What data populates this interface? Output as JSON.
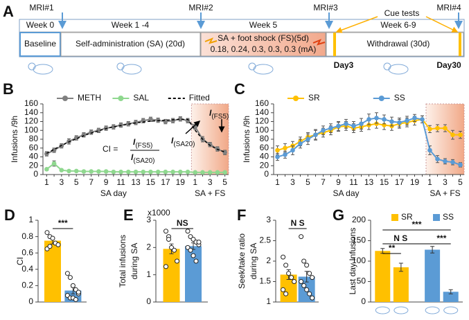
{
  "panel_a": {
    "label": "A",
    "mri": [
      "MRI#1",
      "MRI#2",
      "MRI#3",
      "MRI#4"
    ],
    "weeks": [
      "Week 0",
      "Week 1 -4",
      "Week 5",
      "Week 6-9"
    ],
    "cue_tests": "Cue tests",
    "phases": [
      "Baseline",
      "Self-administration (SA) (20d)",
      "SA + foot shock (FS)(5d)",
      "Withdrawal (30d)"
    ],
    "shock_levels": "0.18, 0.24, 0.3, 0.3, 0.3 (mA)",
    "days": [
      "Day3",
      "Day30"
    ]
  },
  "chart_data": [
    {
      "type": "line",
      "panel": "B",
      "ylabel": "Infusions /9h",
      "xlabels": [
        "SA day",
        "SA + FS"
      ],
      "categories": [
        "1",
        null,
        "3",
        null,
        "5",
        null,
        "7",
        null,
        "9",
        null,
        "11",
        null,
        "13",
        null,
        "15",
        null,
        "17",
        null,
        "19",
        null,
        "1",
        null,
        "3",
        null,
        "5"
      ],
      "ylim": [
        0,
        160
      ],
      "yticks": [
        0,
        20,
        40,
        60,
        80,
        100,
        120,
        140,
        160
      ],
      "series": [
        {
          "name": "METH",
          "color": "#808080",
          "values": [
            47,
            55,
            65,
            75,
            83,
            90,
            96,
            100,
            105,
            108,
            112,
            115,
            118,
            122,
            125,
            123,
            120,
            122,
            126,
            122,
            108,
            80,
            68,
            58,
            50
          ],
          "errors": [
            5,
            5,
            5,
            6,
            5,
            5,
            5,
            5,
            5,
            5,
            5,
            5,
            5,
            5,
            5,
            5,
            5,
            5,
            5,
            5,
            6,
            6,
            5,
            5,
            5
          ]
        },
        {
          "name": "SAL",
          "color": "#8fd88f",
          "values": [
            12,
            25,
            10,
            8,
            8,
            7,
            7,
            7,
            7,
            6,
            6,
            6,
            6,
            6,
            6,
            6,
            6,
            6,
            6,
            6,
            5,
            5,
            5,
            5,
            5
          ],
          "errors": [
            3,
            6,
            2,
            2,
            2,
            2,
            2,
            2,
            2,
            2,
            2,
            2,
            2,
            2,
            2,
            2,
            2,
            2,
            2,
            2,
            2,
            2,
            2,
            2,
            2
          ]
        },
        {
          "name": "Fitted",
          "color": "#000000",
          "dashed": true,
          "values": [
            48,
            57,
            66,
            74,
            81,
            88,
            94,
            99,
            104,
            108,
            111,
            114,
            117,
            119,
            121,
            122,
            123,
            124,
            125,
            125,
            100,
            80,
            66,
            57,
            51
          ]
        }
      ],
      "annotations": {
        "ci": "CI =",
        "terms": [
          {
            "text": "I",
            "sub": "(FS5)"
          },
          {
            "text": "I",
            "sub": "(SA20)"
          },
          {
            "text": "I",
            "sub": "(SA20)"
          },
          {
            "text": "I",
            "sub": "(FS5)"
          }
        ]
      }
    },
    {
      "type": "line",
      "panel": "C",
      "ylabel": "Infusions /9h",
      "xlabels": [
        "SA day",
        "SA + FS"
      ],
      "categories": [
        "1",
        null,
        "3",
        null,
        "5",
        null,
        "7",
        null,
        "9",
        null,
        "11",
        null,
        "13",
        null,
        "15",
        null,
        "17",
        null,
        "19",
        null,
        "1",
        null,
        "3",
        null,
        "5"
      ],
      "ylim": [
        0,
        160
      ],
      "yticks": [
        0,
        20,
        40,
        60,
        80,
        100,
        120,
        140,
        160
      ],
      "series": [
        {
          "name": "SR",
          "color": "#ffc000",
          "values": [
            55,
            60,
            65,
            75,
            85,
            90,
            95,
            100,
            108,
            110,
            105,
            108,
            112,
            115,
            112,
            110,
            115,
            118,
            122,
            125,
            103,
            105,
            105,
            90,
            90
          ],
          "errors": [
            10,
            10,
            10,
            10,
            10,
            10,
            10,
            10,
            10,
            10,
            10,
            10,
            10,
            10,
            10,
            10,
            10,
            10,
            10,
            8,
            8,
            8,
            8,
            10,
            8
          ]
        },
        {
          "name": "SS",
          "color": "#5b9bd5",
          "values": [
            40,
            45,
            55,
            70,
            80,
            90,
            100,
            105,
            110,
            115,
            110,
            115,
            125,
            128,
            125,
            120,
            118,
            122,
            128,
            125,
            55,
            35,
            30,
            28,
            22
          ],
          "errors": [
            8,
            8,
            10,
            10,
            12,
            12,
            10,
            10,
            10,
            10,
            10,
            12,
            12,
            12,
            10,
            10,
            10,
            10,
            8,
            8,
            10,
            8,
            6,
            6,
            5
          ]
        }
      ]
    },
    {
      "type": "bar",
      "panel": "D",
      "ylabel": [
        "CI"
      ],
      "ylim": [
        0,
        1
      ],
      "yticks": [
        0,
        0.2,
        0.4,
        0.6,
        0.8,
        1
      ],
      "values": [
        0.75,
        0.14
      ],
      "errors": [
        0.04,
        0.04
      ],
      "colors": [
        "#ffc000",
        "#5b9bd5"
      ],
      "points": [
        [
          0.85,
          0.8,
          0.78,
          0.72,
          0.7,
          0.65,
          0.68
        ],
        [
          0.35,
          0.3,
          0.2,
          0.15,
          0.1,
          0.08,
          0.05,
          0.05,
          0.03,
          0.12
        ]
      ],
      "significance": [
        "***"
      ]
    },
    {
      "type": "bar",
      "panel": "E",
      "ylabel": [
        "Total infusions",
        "during SA"
      ],
      "scale_label": "x1000",
      "ylim": [
        0,
        3
      ],
      "yticks": [
        0,
        1,
        2,
        3
      ],
      "values": [
        1.95,
        2.05
      ],
      "errors": [
        0.18,
        0.12
      ],
      "colors": [
        "#ffc000",
        "#5b9bd5"
      ],
      "points": [
        [
          2.6,
          2.4,
          2.0,
          1.9,
          1.5,
          1.3,
          2.3
        ],
        [
          2.6,
          2.4,
          2.3,
          2.2,
          2.1,
          2.0,
          1.9,
          1.7,
          1.5,
          2.2
        ]
      ],
      "significance": [
        "NS"
      ]
    },
    {
      "type": "bar",
      "panel": "F",
      "ylabel": [
        "Seek/take ratio",
        "during SA"
      ],
      "ylim": [
        1,
        3
      ],
      "yticks": [
        1,
        1.5,
        2,
        2.5,
        3
      ],
      "values": [
        1.67,
        1.62
      ],
      "errors": [
        0.12,
        0.13
      ],
      "colors": [
        "#ffc000",
        "#5b9bd5"
      ],
      "points": [
        [
          2.1,
          1.9,
          1.7,
          1.6,
          1.5,
          1.3,
          1.2
        ],
        [
          2.6,
          2.0,
          1.9,
          1.7,
          1.6,
          1.5,
          1.4,
          1.3,
          1.2,
          1.1
        ]
      ],
      "significance": [
        "N S"
      ]
    },
    {
      "type": "bar",
      "panel": "G",
      "ylabel": [
        "Last day Infusions"
      ],
      "ylim": [
        0,
        200
      ],
      "yticks": [
        0,
        50,
        100,
        150,
        200
      ],
      "values": [
        125,
        85,
        128,
        25
      ],
      "errors": [
        6,
        10,
        8,
        5
      ],
      "colors": [
        "#ffc000",
        "#ffc000",
        "#5b9bd5",
        "#5b9bd5"
      ],
      "legend": [
        {
          "name": "SR",
          "color": "#ffc000"
        },
        {
          "name": "SS",
          "color": "#5b9bd5"
        }
      ],
      "significance": [
        "**",
        "N S",
        "***",
        "***"
      ]
    }
  ]
}
